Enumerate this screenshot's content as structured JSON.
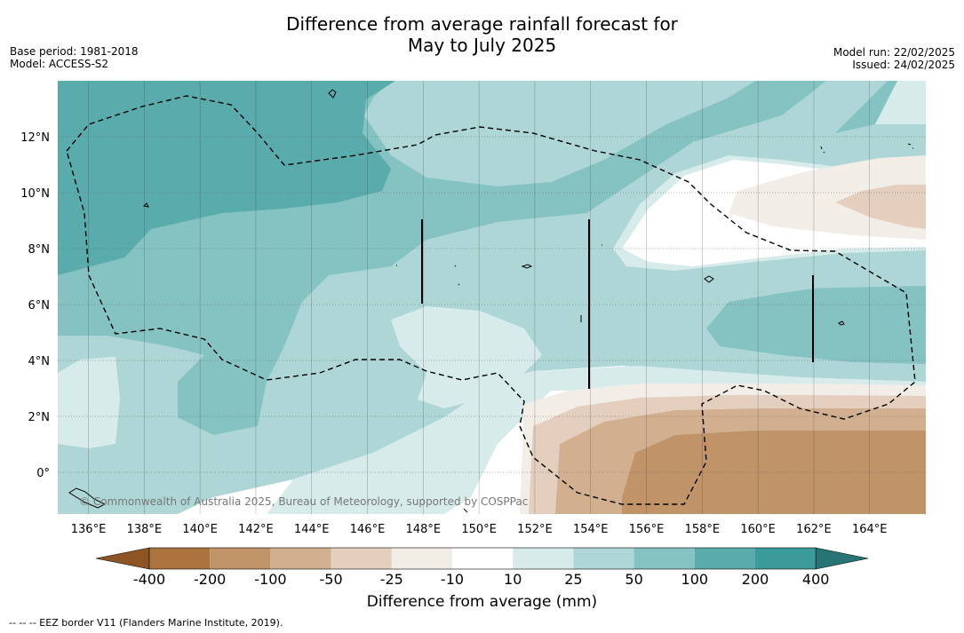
{
  "title_line1": "Difference from average rainfall forecast for",
  "title_line2": "May to July 2025",
  "meta": {
    "base_period": "Base period: 1981-2018",
    "model": "Model: ACCESS-S2",
    "model_run": "Model run: 22/02/2025",
    "issued": "Issued: 24/02/2025"
  },
  "map": {
    "lat_range": [
      -1.5,
      14
    ],
    "lon_range": [
      134.9,
      166.0
    ],
    "lat_ticks": [
      {
        "value": 12,
        "label": "12°N"
      },
      {
        "value": 10,
        "label": "10°N"
      },
      {
        "value": 8,
        "label": "8°N"
      },
      {
        "value": 6,
        "label": "6°N"
      },
      {
        "value": 4,
        "label": "4°N"
      },
      {
        "value": 2,
        "label": "2°N"
      },
      {
        "value": 0,
        "label": "0°"
      }
    ],
    "lon_ticks": [
      {
        "value": 136,
        "label": "136°E"
      },
      {
        "value": 138,
        "label": "138°E"
      },
      {
        "value": 140,
        "label": "140°E"
      },
      {
        "value": 142,
        "label": "142°E"
      },
      {
        "value": 144,
        "label": "144°E"
      },
      {
        "value": 146,
        "label": "146°E"
      },
      {
        "value": 148,
        "label": "148°E"
      },
      {
        "value": 150,
        "label": "150°E"
      },
      {
        "value": 152,
        "label": "152°E"
      },
      {
        "value": 154,
        "label": "154°E"
      },
      {
        "value": 156,
        "label": "156°E"
      },
      {
        "value": 158,
        "label": "158°E"
      },
      {
        "value": 160,
        "label": "160°E"
      },
      {
        "value": 162,
        "label": "162°E"
      },
      {
        "value": 164,
        "label": "164°E"
      }
    ],
    "copyright": "© Commonwealth of Australia 2025, Bureau of Meteorology, supported by COSPPac"
  },
  "colorbar": {
    "labels": [
      "-400",
      "-200",
      "-100",
      "-50",
      "-25",
      "-10",
      "10",
      "25",
      "50",
      "100",
      "200",
      "400"
    ],
    "colors": [
      "#8d5524",
      "#ab733d",
      "#c09468",
      "#d2b08f",
      "#e4cfbf",
      "#f2ede6",
      "#ffffff",
      "#d7ebeb",
      "#aed6d6",
      "#85c2c2",
      "#5aabab",
      "#3a9b9a",
      "#267574"
    ],
    "title": "Difference from average (mm)"
  },
  "eez_note": "--  --  -- EEZ border V11 (Flanders Marine Institute, 2019)."
}
